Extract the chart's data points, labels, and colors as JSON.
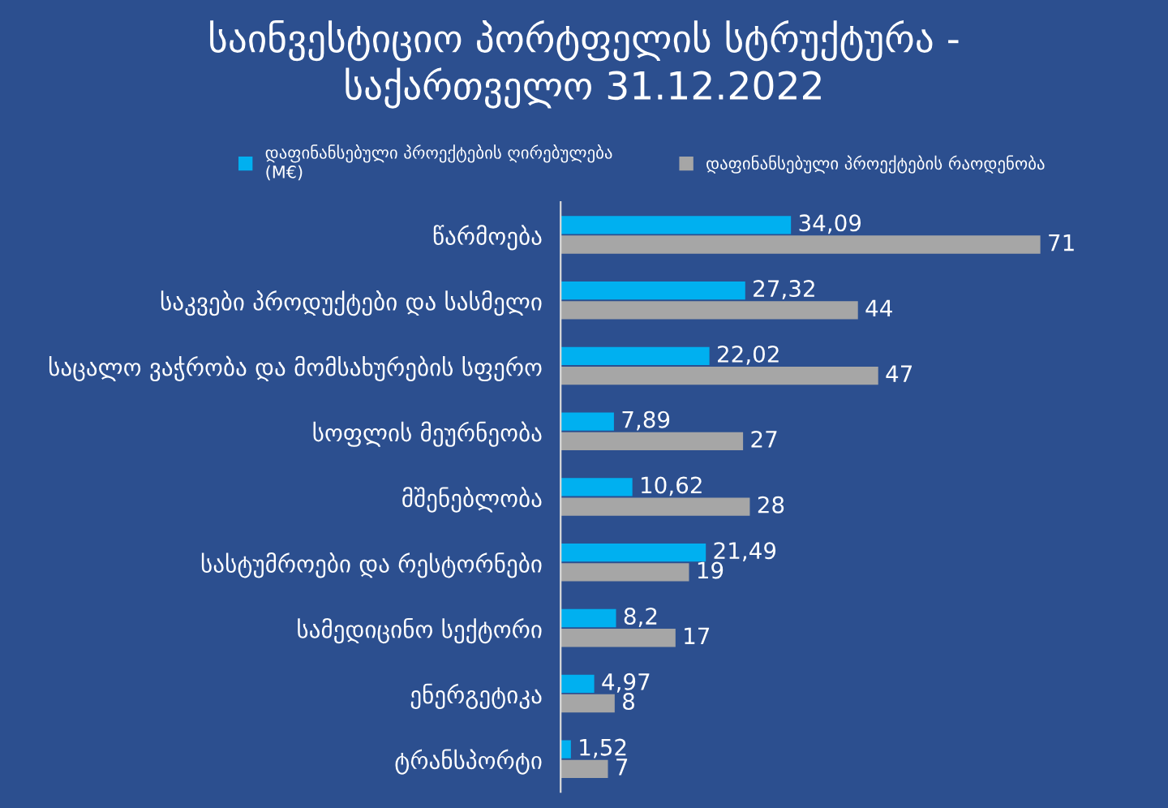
{
  "chart_data": {
    "type": "bar",
    "orientation": "horizontal",
    "title": "საინვესტიციო პორტფელის სტრუქტურა -\nსაქართველო 31.12.2022",
    "categories": [
      "წარმოება",
      "საკვები პროდუქტები და სასმელი",
      "საცალო ვაჭრობა და მომსახურების სფერო",
      "სოფლის მეურნეობა",
      "მშენებლობა",
      "სასტუმროები და რესტორნები",
      "სამედიცინო სექტორი",
      "ენერგეტიკა",
      "ტრანსპორტი"
    ],
    "series": [
      {
        "name": "დაფინანსებული პროექტების ღირებულება\n(M€)",
        "color": "#00b0f0",
        "values": [
          34.09,
          27.32,
          22.02,
          7.89,
          10.62,
          21.49,
          8.2,
          4.97,
          1.52
        ],
        "value_labels": [
          "34,09",
          "27,32",
          "22,02",
          "7,89",
          "10,62",
          "21,49",
          "8,2",
          "4,97",
          "1,52"
        ]
      },
      {
        "name": "დაფინანსებული პროექტების რაოდენობა",
        "color": "#a6a6a6",
        "values": [
          71,
          44,
          47,
          27,
          28,
          19,
          17,
          8,
          7
        ],
        "value_labels": [
          "71",
          "44",
          "47",
          "27",
          "28",
          "19",
          "17",
          "8",
          "7"
        ]
      }
    ],
    "legend": "top",
    "grid": false
  }
}
